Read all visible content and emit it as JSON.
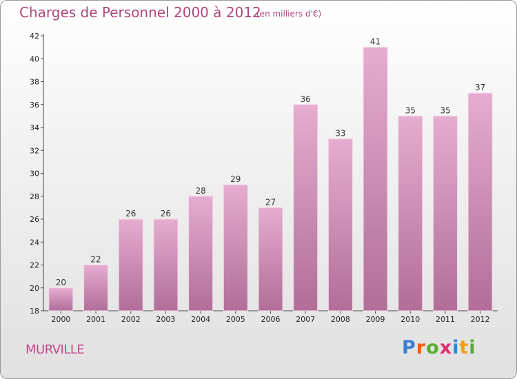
{
  "header": {
    "title": "Charges de Personnel 2000 à 2012",
    "subtitle": "(en milliers d'€)"
  },
  "footer": {
    "city": "MURVILLE",
    "logo_text": "Proxiti",
    "logo_letters": [
      {
        "char": "P",
        "color": "#3b7fd0"
      },
      {
        "char": "r",
        "color": "#e85c1a"
      },
      {
        "char": "o",
        "color": "#58b030"
      },
      {
        "char": "x",
        "color": "#e52a6f"
      },
      {
        "char": "i",
        "color": "#2a8ad6"
      },
      {
        "char": "t",
        "color": "#f0a01c"
      },
      {
        "char": "i",
        "color": "#5aa832"
      }
    ]
  },
  "colors": {
    "bar_top": "#e6acd0",
    "bar_bottom": "#b06e98",
    "accent": "#b0467d"
  },
  "chart_data": {
    "type": "bar",
    "title": "Charges de Personnel 2000 à 2012",
    "subtitle": "(en milliers d'€)",
    "categories": [
      "2000",
      "2001",
      "2002",
      "2003",
      "2004",
      "2005",
      "2006",
      "2007",
      "2008",
      "2009",
      "2010",
      "2011",
      "2012"
    ],
    "values": [
      20,
      22,
      26,
      26,
      28,
      29,
      27,
      36,
      33,
      41,
      35,
      35,
      37
    ],
    "ylim": [
      18,
      42
    ],
    "yticks": [
      18,
      20,
      22,
      24,
      26,
      28,
      30,
      32,
      34,
      36,
      38,
      40,
      42
    ],
    "grid": false,
    "legend": "none"
  }
}
